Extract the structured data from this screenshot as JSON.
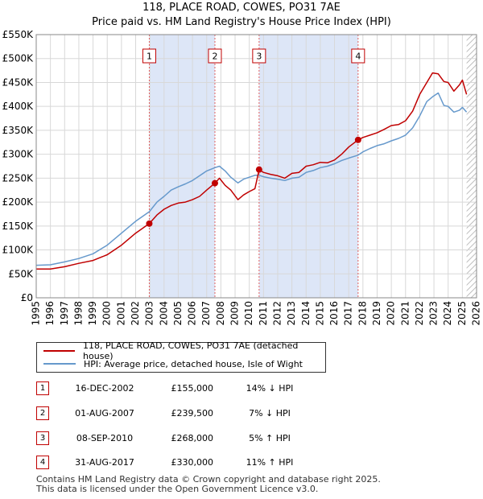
{
  "title_line1": "118, PLACE ROAD, COWES, PO31 7AE",
  "title_line2": "Price paid vs. HM Land Registry's House Price Index (HPI)",
  "colors": {
    "price": "#c00000",
    "hpi": "#6699cc",
    "shade": "#dde6f7",
    "marker_line": "#e06060"
  },
  "chart_data": {
    "type": "line",
    "title": "Price paid vs. HM Land Registry's House Price Index (HPI)",
    "xlim": [
      1995,
      2026
    ],
    "ylim": [
      0,
      550000
    ],
    "y_ticks": [
      0,
      50000,
      100000,
      150000,
      200000,
      250000,
      300000,
      350000,
      400000,
      450000,
      500000,
      550000
    ],
    "y_tick_labels": [
      "£0",
      "£50K",
      "£100K",
      "£150K",
      "£200K",
      "£250K",
      "£300K",
      "£350K",
      "£400K",
      "£450K",
      "£500K",
      "£550K"
    ],
    "x_ticks": [
      1995,
      1996,
      1997,
      1998,
      1999,
      2000,
      2001,
      2002,
      2003,
      2004,
      2005,
      2006,
      2007,
      2008,
      2009,
      2010,
      2011,
      2012,
      2013,
      2014,
      2015,
      2016,
      2017,
      2018,
      2019,
      2020,
      2021,
      2022,
      2023,
      2024,
      2025,
      2026
    ],
    "x_tick_labels": [
      "1995",
      "1996",
      "1997",
      "1998",
      "1999",
      "2000",
      "2001",
      "2002",
      "2003",
      "2004",
      "2005",
      "2006",
      "2007",
      "2008",
      "2009",
      "2010",
      "2011",
      "2012",
      "2013",
      "2014",
      "2015",
      "2016",
      "2017",
      "2018",
      "2019",
      "2020",
      "2021",
      "2022",
      "2023",
      "2024",
      "2025",
      "2026"
    ],
    "shaded_periods": [
      [
        2002.96,
        2007.58
      ],
      [
        2010.69,
        2017.66
      ]
    ],
    "hatched_from": 2025.3,
    "series": [
      {
        "name": "118, PLACE ROAD, COWES, PO31 7AE (detached house)",
        "x": [
          1995.0,
          1996.0,
          1997.0,
          1998.0,
          1999.0,
          2000.0,
          2001.0,
          2002.0,
          2002.96,
          2003.5,
          2004.0,
          2004.5,
          2005.0,
          2005.5,
          2006.0,
          2006.5,
          2007.0,
          2007.58,
          2007.9,
          2008.3,
          2008.7,
          2009.2,
          2009.6,
          2010.0,
          2010.4,
          2010.69,
          2011.0,
          2011.5,
          2012.0,
          2012.5,
          2013.0,
          2013.5,
          2014.0,
          2014.5,
          2015.0,
          2015.5,
          2016.0,
          2016.5,
          2017.0,
          2017.66,
          2018.0,
          2018.5,
          2019.0,
          2019.5,
          2020.0,
          2020.5,
          2021.0,
          2021.5,
          2022.0,
          2022.5,
          2022.9,
          2023.3,
          2023.7,
          2024.0,
          2024.4,
          2024.8,
          2025.0,
          2025.3
        ],
        "values": [
          60000,
          60000,
          65000,
          72000,
          78000,
          90000,
          110000,
          135000,
          155000,
          173000,
          185000,
          193000,
          198000,
          200000,
          205000,
          212000,
          225000,
          239500,
          250000,
          235000,
          225000,
          205000,
          215000,
          222000,
          228000,
          268000,
          262000,
          258000,
          255000,
          250000,
          260000,
          262000,
          275000,
          278000,
          283000,
          282000,
          288000,
          300000,
          315000,
          330000,
          335000,
          340000,
          345000,
          352000,
          360000,
          362000,
          370000,
          390000,
          425000,
          450000,
          470000,
          468000,
          452000,
          450000,
          432000,
          445000,
          455000,
          425000
        ]
      },
      {
        "name": "HPI: Average price, detached house, Isle of Wight",
        "x": [
          1995.0,
          1996.0,
          1997.0,
          1998.0,
          1999.0,
          2000.0,
          2001.0,
          2002.0,
          2002.96,
          2003.5,
          2004.0,
          2004.5,
          2005.0,
          2005.5,
          2006.0,
          2006.5,
          2007.0,
          2007.58,
          2007.9,
          2008.3,
          2008.7,
          2009.2,
          2009.6,
          2010.0,
          2010.4,
          2010.69,
          2011.0,
          2011.5,
          2012.0,
          2012.5,
          2013.0,
          2013.5,
          2014.0,
          2014.5,
          2015.0,
          2015.5,
          2016.0,
          2016.5,
          2017.0,
          2017.66,
          2018.0,
          2018.5,
          2019.0,
          2019.5,
          2020.0,
          2020.5,
          2021.0,
          2021.5,
          2022.0,
          2022.5,
          2022.9,
          2023.3,
          2023.7,
          2024.0,
          2024.4,
          2024.8,
          2025.0,
          2025.3
        ],
        "values": [
          68000,
          69000,
          75000,
          82000,
          92000,
          110000,
          135000,
          160000,
          180000,
          200000,
          212000,
          225000,
          232000,
          238000,
          245000,
          255000,
          265000,
          272000,
          275000,
          265000,
          252000,
          240000,
          248000,
          252000,
          256000,
          256000,
          253000,
          250000,
          248000,
          245000,
          250000,
          252000,
          262000,
          266000,
          272000,
          275000,
          280000,
          287000,
          292000,
          298000,
          305000,
          312000,
          318000,
          322000,
          328000,
          333000,
          340000,
          355000,
          380000,
          410000,
          420000,
          428000,
          402000,
          400000,
          388000,
          392000,
          398000,
          388000
        ]
      }
    ],
    "sales": [
      {
        "label": "1",
        "x": 2002.96,
        "value": 155000
      },
      {
        "label": "2",
        "x": 2007.58,
        "value": 239500
      },
      {
        "label": "3",
        "x": 2010.69,
        "value": 268000
      },
      {
        "label": "4",
        "x": 2017.66,
        "value": 330000
      }
    ]
  },
  "legend": {
    "price_label": "118, PLACE ROAD, COWES, PO31 7AE (detached house)",
    "hpi_label": "HPI: Average price, detached house, Isle of Wight"
  },
  "transactions": [
    {
      "num": "1",
      "date": "16-DEC-2002",
      "price": "£155,000",
      "hpi": "14% ↓ HPI"
    },
    {
      "num": "2",
      "date": "01-AUG-2007",
      "price": "£239,500",
      "hpi": "7% ↓ HPI"
    },
    {
      "num": "3",
      "date": "08-SEP-2010",
      "price": "£268,000",
      "hpi": "5% ↑ HPI"
    },
    {
      "num": "4",
      "date": "31-AUG-2017",
      "price": "£330,000",
      "hpi": "11% ↑ HPI"
    }
  ],
  "footer": {
    "line1": "Contains HM Land Registry data © Crown copyright and database right 2025.",
    "line2": "This data is licensed under the Open Government Licence v3.0."
  }
}
